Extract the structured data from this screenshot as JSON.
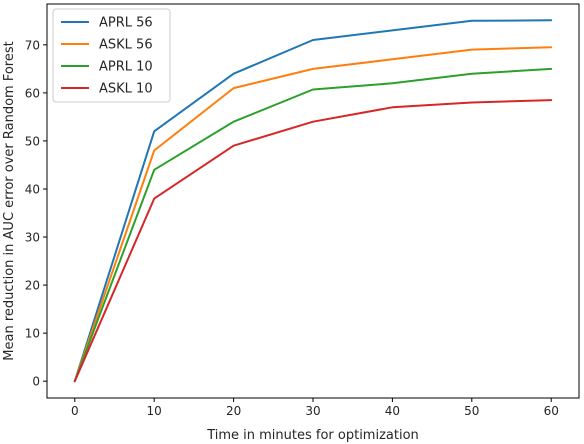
{
  "chart_data": {
    "type": "line",
    "title": "",
    "xlabel": "Time in minutes for optimization",
    "ylabel": "Mean reduction in AUC error over Random Forest",
    "x": [
      0,
      10,
      20,
      30,
      40,
      50,
      60
    ],
    "xticks": [
      "0",
      "10",
      "20",
      "30",
      "40",
      "50",
      "60"
    ],
    "yticks": [
      "0",
      "10",
      "20",
      "30",
      "40",
      "50",
      "60",
      "70"
    ],
    "xlim": [
      -3.5,
      63.5
    ],
    "ylim": [
      -3.5,
      78.5
    ],
    "grid": false,
    "legend_position": "top-left",
    "series": [
      {
        "name": "APRL 56",
        "color": "#1f77b4",
        "values": [
          0,
          52,
          64,
          71,
          73,
          75,
          75.1
        ]
      },
      {
        "name": "ASKL 56",
        "color": "#ff7f0e",
        "values": [
          0,
          48,
          61,
          65,
          67,
          69,
          69.5
        ]
      },
      {
        "name": "APRL 10",
        "color": "#2ca02c",
        "values": [
          0,
          44,
          54,
          60.7,
          62,
          64,
          65
        ]
      },
      {
        "name": "ASKL 10",
        "color": "#d62728",
        "values": [
          0,
          38,
          49,
          54,
          57,
          58,
          58.5
        ]
      }
    ]
  }
}
